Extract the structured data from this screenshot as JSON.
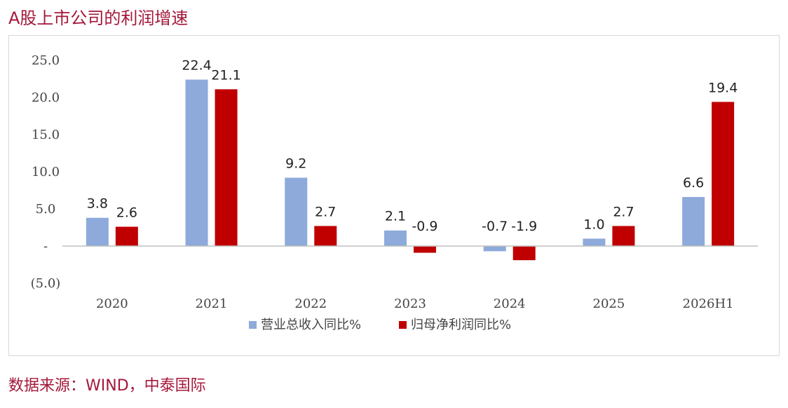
{
  "header": {
    "title": "A股上市公司的利润增速"
  },
  "footer": {
    "source": "数据来源：WIND，中泰国际"
  },
  "colors": {
    "title": "#a4173a",
    "series_revenue": "#8eaadb",
    "series_profit": "#c00000",
    "axis": "#bfbfbf"
  },
  "chart_data": {
    "type": "bar",
    "title": "",
    "xlabel": "",
    "ylabel": "",
    "categories": [
      "2020",
      "2021",
      "2022",
      "2023",
      "2024",
      "2025",
      "2026H1"
    ],
    "series": [
      {
        "name": "营业总收入同比%",
        "values": [
          3.8,
          22.4,
          9.2,
          2.1,
          -0.7,
          1.0,
          6.6
        ],
        "labels": [
          "3.8",
          "22.4",
          "9.2",
          "2.1",
          "-0.7",
          "1.0",
          "6.6"
        ]
      },
      {
        "name": "归母净利润同比%",
        "values": [
          2.6,
          21.1,
          2.7,
          -0.9,
          -1.9,
          2.7,
          19.4
        ],
        "labels": [
          "2.6",
          "21.1",
          "2.7",
          "-0.9",
          "-1.9",
          "2.7",
          "19.4"
        ]
      }
    ],
    "ylim": [
      -5,
      25
    ],
    "y_ticks": [
      25,
      20,
      15,
      10,
      5,
      0,
      -5
    ],
    "y_tick_labels": [
      "25.0",
      "20.0",
      "15.0",
      "10.0",
      "5.0",
      "-",
      "(5.0)"
    ],
    "grid": false,
    "legend_position": "bottom"
  }
}
